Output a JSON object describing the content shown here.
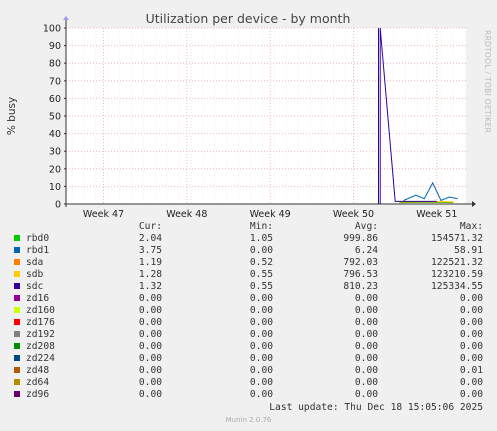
{
  "chart_data": {
    "type": "line",
    "title": "Utilization per device - by month",
    "ylabel": "% busy",
    "xlabel": "",
    "ylim": [
      0,
      100
    ],
    "yticks": [
      0,
      10,
      20,
      30,
      40,
      50,
      60,
      70,
      80,
      90,
      100
    ],
    "xticks": [
      "Week 47",
      "Week 48",
      "Week 49",
      "Week 50",
      "Week 51"
    ],
    "grid": true,
    "watermark": "RRDTOOL / TOBI OETIKER",
    "series": [
      {
        "name": "sdc",
        "color": "#330099",
        "x": [
          16.3,
          16.3,
          16.3,
          16.32,
          16.32,
          16.5,
          17.0
        ],
        "y": [
          0,
          100,
          0,
          0,
          100,
          1.5,
          1.5
        ]
      },
      {
        "name": "rbd1",
        "color": "#0066b3",
        "x": [
          16.6,
          16.75,
          16.85,
          16.95,
          17.05,
          17.15,
          17.25
        ],
        "y": [
          2,
          5,
          3,
          12,
          2,
          4,
          3
        ]
      },
      {
        "name": "sdb",
        "color": "#ffcc00",
        "x": [
          16.55,
          16.9,
          17.2
        ],
        "y": [
          1.2,
          1.4,
          1.2
        ]
      },
      {
        "name": "sda",
        "color": "#ff8000",
        "x": [
          16.55,
          16.9,
          17.2
        ],
        "y": [
          1.1,
          1.3,
          1.1
        ]
      },
      {
        "name": "rbd0",
        "color": "#00cc00",
        "x": [
          16.55,
          16.9,
          17.2
        ],
        "y": [
          0.8,
          1.0,
          0.8
        ]
      }
    ]
  },
  "legend": {
    "headers": {
      "cur": "Cur:",
      "min": "Min:",
      "avg": "Avg:",
      "max": "Max:"
    },
    "rows": [
      {
        "name": "rbd0",
        "color": "#00cc00",
        "cur": "2.04",
        "min": "1.05",
        "avg": "999.86",
        "max": "154571.32"
      },
      {
        "name": "rbd1",
        "color": "#0066b3",
        "cur": "3.75",
        "min": "0.00",
        "avg": "6.24",
        "max": "58.91"
      },
      {
        "name": "sda",
        "color": "#ff8000",
        "cur": "1.19",
        "min": "0.52",
        "avg": "792.03",
        "max": "122521.32"
      },
      {
        "name": "sdb",
        "color": "#ffcc00",
        "cur": "1.28",
        "min": "0.55",
        "avg": "796.53",
        "max": "123210.59"
      },
      {
        "name": "sdc",
        "color": "#330099",
        "cur": "1.32",
        "min": "0.55",
        "avg": "810.23",
        "max": "125334.55"
      },
      {
        "name": "zd16",
        "color": "#990099",
        "cur": "0.00",
        "min": "0.00",
        "avg": "0.00",
        "max": "0.00"
      },
      {
        "name": "zd160",
        "color": "#ccff00",
        "cur": "0.00",
        "min": "0.00",
        "avg": "0.00",
        "max": "0.00"
      },
      {
        "name": "zd176",
        "color": "#ff0000",
        "cur": "0.00",
        "min": "0.00",
        "avg": "0.00",
        "max": "0.00"
      },
      {
        "name": "zd192",
        "color": "#808080",
        "cur": "0.00",
        "min": "0.00",
        "avg": "0.00",
        "max": "0.00"
      },
      {
        "name": "zd208",
        "color": "#008f00",
        "cur": "0.00",
        "min": "0.00",
        "avg": "0.00",
        "max": "0.00"
      },
      {
        "name": "zd224",
        "color": "#00487d",
        "cur": "0.00",
        "min": "0.00",
        "avg": "0.00",
        "max": "0.00"
      },
      {
        "name": "zd48",
        "color": "#b35a00",
        "cur": "0.00",
        "min": "0.00",
        "avg": "0.00",
        "max": "0.01"
      },
      {
        "name": "zd64",
        "color": "#b38f00",
        "cur": "0.00",
        "min": "0.00",
        "avg": "0.00",
        "max": "0.00"
      },
      {
        "name": "zd96",
        "color": "#6b006b",
        "cur": "0.00",
        "min": "0.00",
        "avg": "0.00",
        "max": "0.00"
      }
    ]
  },
  "footer": {
    "last_update": "Last update: Thu Dec 18 15:05:06 2025",
    "version": "Munin 2.0.76"
  }
}
